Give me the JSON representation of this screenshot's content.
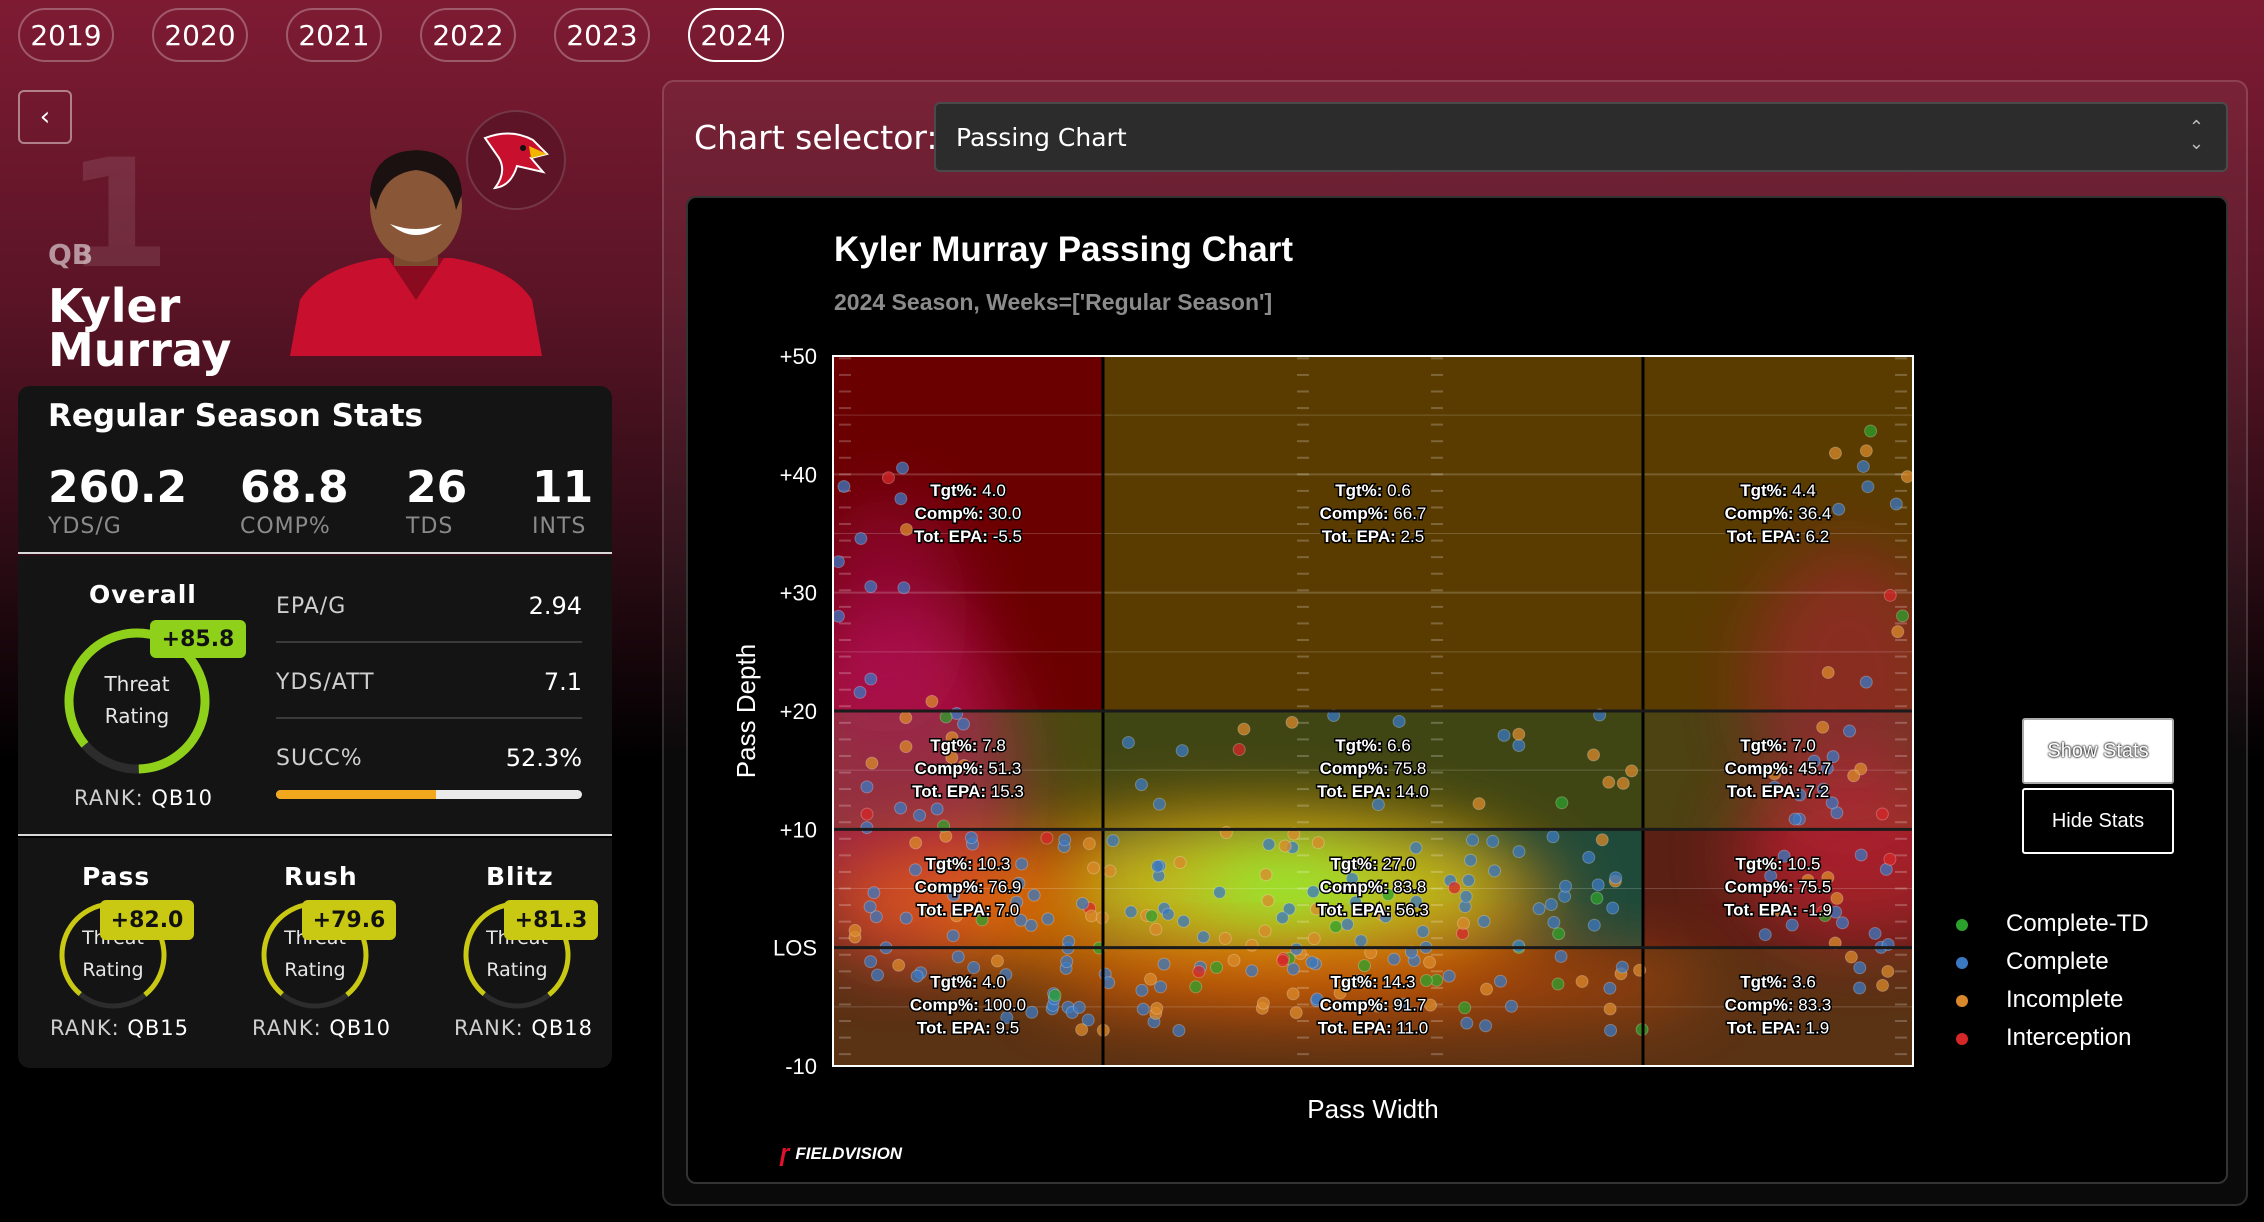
{
  "years": [
    "2019",
    "2020",
    "2021",
    "2022",
    "2023",
    "2024"
  ],
  "active_year": "2024",
  "player": {
    "number": "1",
    "position": "QB",
    "first": "Kyler",
    "last": "Murray"
  },
  "season_stats": {
    "title": "Regular Season Stats",
    "items": [
      {
        "value": "260.2",
        "label": "YDS/G"
      },
      {
        "value": "68.8",
        "label": "COMP%"
      },
      {
        "value": "26",
        "label": "TDS"
      },
      {
        "value": "11",
        "label": "INTS"
      }
    ]
  },
  "overall": {
    "title": "Overall",
    "badge": "+85.8",
    "ring_line1": "Threat",
    "ring_line2": "Rating",
    "rank_label": "RANK:",
    "rank_value": "QB10",
    "metrics": [
      {
        "label": "EPA/G",
        "value": "2.94"
      },
      {
        "label": "YDS/ATT",
        "value": "7.1"
      },
      {
        "label": "SUCC%",
        "value": "52.3%"
      }
    ],
    "succ_fraction": 0.523
  },
  "sub_ratings": [
    {
      "title": "Pass",
      "badge": "+82.0",
      "line1": "Threat",
      "line2": "Rating",
      "rank_label": "RANK:",
      "rank_value": "QB15"
    },
    {
      "title": "Rush",
      "badge": "+79.6",
      "line1": "Threat",
      "line2": "Rating",
      "rank_label": "RANK:",
      "rank_value": "QB10"
    },
    {
      "title": "Blitz",
      "badge": "+81.3",
      "line1": "Threat",
      "line2": "Rating",
      "rank_label": "RANK:",
      "rank_value": "QB18"
    }
  ],
  "chart_selector": {
    "label": "Chart selector:",
    "value": "Passing Chart"
  },
  "buttons": {
    "show": "Show Stats",
    "hide": "Hide Stats"
  },
  "colors": {
    "complete_td": "#2ca02c",
    "complete": "#3a78c2",
    "incomplete": "#d9892b",
    "interception": "#d62728",
    "accent": "#8fd11a",
    "badge_yellow": "#c9c812"
  },
  "brand": "FIELDVISION",
  "chart_data": {
    "type": "scatter",
    "title": "Kyler Murray Passing Chart",
    "subtitle": "2024 Season, Weeks=['Regular Season']",
    "xlabel": "Pass Width",
    "ylabel": "Pass Depth",
    "ylim": [
      -10,
      50
    ],
    "y_ticks": [
      "+50",
      "+40",
      "+30",
      "+20",
      "+10",
      "LOS",
      "-10"
    ],
    "legend": [
      {
        "label": "Complete-TD",
        "color": "#2ca02c"
      },
      {
        "label": "Complete",
        "color": "#3a78c2"
      },
      {
        "label": "Incomplete",
        "color": "#d9892b"
      },
      {
        "label": "Interception",
        "color": "#d62728"
      }
    ],
    "zones": [
      {
        "col": 0,
        "row": 0,
        "tgt": "4.0",
        "comp": "30.0",
        "epa": "-5.5"
      },
      {
        "col": 1,
        "row": 0,
        "tgt": "0.6",
        "comp": "66.7",
        "epa": "2.5"
      },
      {
        "col": 2,
        "row": 0,
        "tgt": "4.4",
        "comp": "36.4",
        "epa": "6.2"
      },
      {
        "col": 0,
        "row": 1,
        "tgt": "7.8",
        "comp": "51.3",
        "epa": "15.3"
      },
      {
        "col": 1,
        "row": 1,
        "tgt": "6.6",
        "comp": "75.8",
        "epa": "14.0"
      },
      {
        "col": 2,
        "row": 1,
        "tgt": "7.0",
        "comp": "45.7",
        "epa": "7.2"
      },
      {
        "col": 0,
        "row": 2,
        "tgt": "10.3",
        "comp": "76.9",
        "epa": "7.0"
      },
      {
        "col": 1,
        "row": 2,
        "tgt": "27.0",
        "comp": "83.8",
        "epa": "56.3"
      },
      {
        "col": 2,
        "row": 2,
        "tgt": "10.5",
        "comp": "75.5",
        "epa": "-1.9"
      },
      {
        "col": 0,
        "row": 3,
        "tgt": "4.0",
        "comp": "100.0",
        "epa": "9.5"
      },
      {
        "col": 1,
        "row": 3,
        "tgt": "14.3",
        "comp": "91.7",
        "epa": "11.0"
      },
      {
        "col": 2,
        "row": 3,
        "tgt": "3.6",
        "comp": "83.3",
        "epa": "1.9"
      }
    ],
    "stat_labels": {
      "tgt": "Tgt%:",
      "comp": "Comp%:",
      "epa": "Tot. EPA:"
    }
  }
}
